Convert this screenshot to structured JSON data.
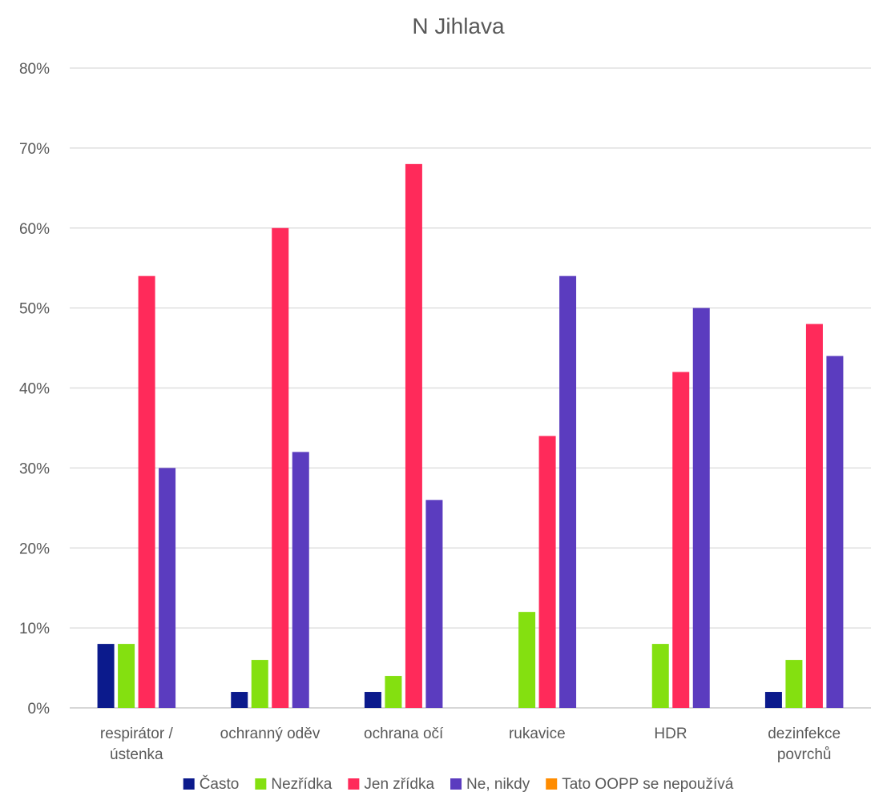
{
  "chart_data": {
    "type": "bar",
    "title": "N Jihlava",
    "categories": [
      [
        "respirátor /",
        "ústenka"
      ],
      [
        "ochranný oděv"
      ],
      [
        "ochrana očí"
      ],
      [
        "rukavice"
      ],
      [
        "HDR"
      ],
      [
        "dezinfekce",
        "povrchů"
      ]
    ],
    "series": [
      {
        "name": "Často",
        "color": "#0b1a8c",
        "values": [
          8,
          2,
          2,
          0,
          0,
          2
        ]
      },
      {
        "name": "Nezřídka",
        "color": "#84e010",
        "values": [
          8,
          6,
          4,
          12,
          8,
          6
        ]
      },
      {
        "name": "Jen zřídka",
        "color": "#ff2a5a",
        "values": [
          54,
          60,
          68,
          34,
          42,
          48
        ]
      },
      {
        "name": "Ne, nikdy",
        "color": "#5b3cbf",
        "values": [
          30,
          32,
          26,
          54,
          50,
          44
        ]
      },
      {
        "name": "Tato OOPP se nepoužívá",
        "color": "#ff8c00",
        "values": [
          0,
          0,
          0,
          0,
          0,
          0
        ]
      }
    ],
    "ylim": [
      0,
      80
    ],
    "yticks": [
      "0%",
      "10%",
      "20%",
      "30%",
      "40%",
      "50%",
      "60%",
      "70%",
      "80%"
    ],
    "grid": true,
    "legend": "bottom"
  }
}
